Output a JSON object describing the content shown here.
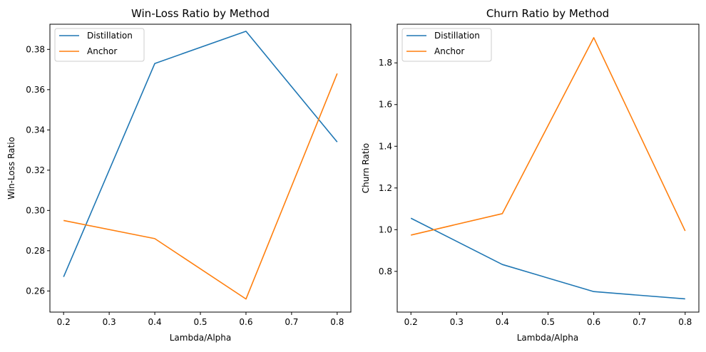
{
  "chart_data": [
    {
      "type": "line",
      "title": "Win-Loss Ratio by Method",
      "xlabel": "Lambda/Alpha",
      "ylabel": "Win-Loss Ratio",
      "xlim": [
        0.17,
        0.83
      ],
      "ylim": [
        0.2495,
        0.3925
      ],
      "xticks": [
        0.2,
        0.3,
        0.4,
        0.5,
        0.6,
        0.7,
        0.8
      ],
      "xtick_labels": [
        "0.2",
        "0.3",
        "0.4",
        "0.5",
        "0.6",
        "0.7",
        "0.8"
      ],
      "yticks": [
        0.26,
        0.28,
        0.3,
        0.32,
        0.34,
        0.36,
        0.38
      ],
      "ytick_labels": [
        "0.26",
        "0.28",
        "0.30",
        "0.32",
        "0.34",
        "0.36",
        "0.38"
      ],
      "x": [
        0.2,
        0.4,
        0.6,
        0.8
      ],
      "legend_position": "upper-left",
      "grid": false,
      "series": [
        {
          "name": "Distillation",
          "color": "#1f77b4",
          "values": [
            0.267,
            0.373,
            0.389,
            0.334
          ]
        },
        {
          "name": "Anchor",
          "color": "#ff7f0e",
          "values": [
            0.295,
            0.286,
            0.256,
            0.368
          ]
        }
      ]
    },
    {
      "type": "line",
      "title": "Churn Ratio by Method",
      "xlabel": "Lambda/Alpha",
      "ylabel": "Churn Ratio",
      "xlim": [
        0.17,
        0.83
      ],
      "ylim": [
        0.6047,
        1.9853
      ],
      "xticks": [
        0.2,
        0.3,
        0.4,
        0.5,
        0.6,
        0.7,
        0.8
      ],
      "xtick_labels": [
        "0.2",
        "0.3",
        "0.4",
        "0.5",
        "0.6",
        "0.7",
        "0.8"
      ],
      "yticks": [
        0.8,
        1.0,
        1.2,
        1.4,
        1.6,
        1.8
      ],
      "ytick_labels": [
        "0.8",
        "1.0",
        "1.2",
        "1.4",
        "1.6",
        "1.8"
      ],
      "x": [
        0.2,
        0.4,
        0.6,
        0.8
      ],
      "legend_position": "upper-left",
      "grid": false,
      "series": [
        {
          "name": "Distillation",
          "color": "#1f77b4",
          "values": [
            1.055,
            0.833,
            0.703,
            0.668
          ]
        },
        {
          "name": "Anchor",
          "color": "#ff7f0e",
          "values": [
            0.974,
            1.077,
            1.921,
            0.994
          ]
        }
      ]
    }
  ]
}
